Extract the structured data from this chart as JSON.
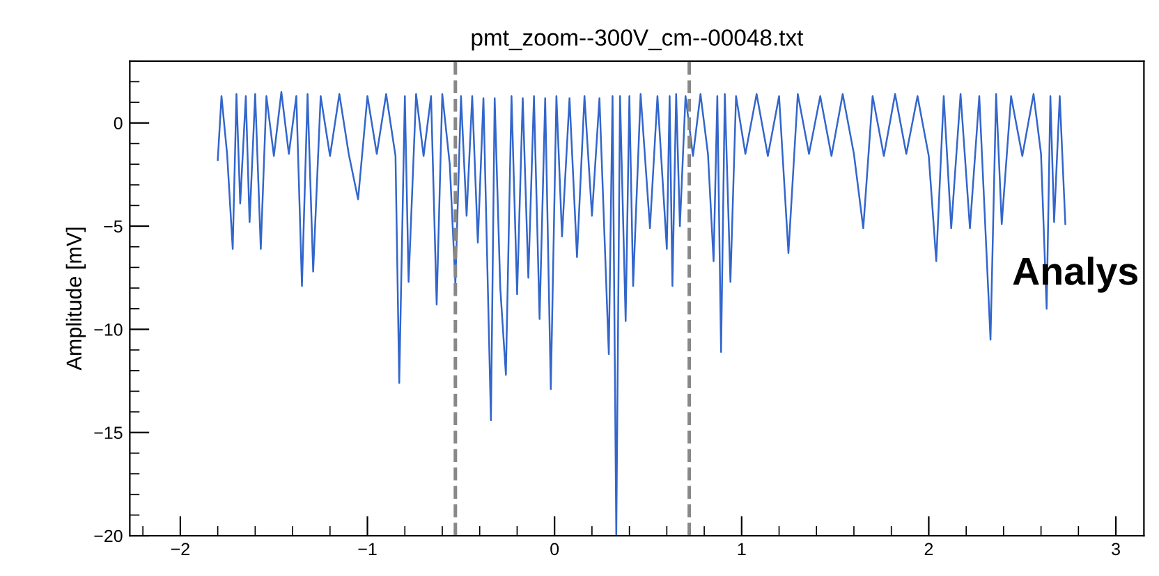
{
  "chart_data": {
    "type": "line",
    "title": "pmt_zoom--300V_cm--00048.txt",
    "ylabel": "Amplitude [mV]",
    "annotations": [
      "Analys"
    ],
    "xlim": [
      -2.27,
      3.15
    ],
    "ylim": [
      -20,
      3
    ],
    "xticks": [
      {
        "value": -2,
        "label": "−2"
      },
      {
        "value": -1,
        "label": "−1"
      },
      0,
      1,
      2,
      3
    ],
    "yticks": [
      {
        "value": -20,
        "label": "−20"
      },
      {
        "value": -15,
        "label": "−15"
      },
      {
        "value": -10,
        "label": "−10"
      },
      {
        "value": -5,
        "label": "−5"
      },
      0
    ],
    "grid": false,
    "legend": false,
    "marker": "none",
    "line_style": "solid",
    "ref_lines": [
      {
        "axis": "x",
        "value": -0.53,
        "color": "#888888",
        "line_style": "dashed"
      },
      {
        "axis": "x",
        "value": 0.72,
        "color": "#888888",
        "line_style": "dashed"
      }
    ],
    "series": [
      {
        "color": "#3366cc",
        "x": [
          -1.8,
          -1.78,
          -1.75,
          -1.72,
          -1.7,
          -1.68,
          -1.65,
          -1.63,
          -1.6,
          -1.57,
          -1.54,
          -1.5,
          -1.46,
          -1.42,
          -1.38,
          -1.35,
          -1.32,
          -1.29,
          -1.25,
          -1.2,
          -1.15,
          -1.1,
          -1.05,
          -1.0,
          -0.95,
          -0.9,
          -0.85,
          -0.83,
          -0.8,
          -0.78,
          -0.74,
          -0.7,
          -0.66,
          -0.63,
          -0.6,
          -0.56,
          -0.53,
          -0.5,
          -0.47,
          -0.44,
          -0.41,
          -0.38,
          -0.34,
          -0.32,
          -0.29,
          -0.26,
          -0.23,
          -0.2,
          -0.17,
          -0.14,
          -0.11,
          -0.08,
          -0.05,
          -0.02,
          0.01,
          0.04,
          0.08,
          0.12,
          0.16,
          0.2,
          0.24,
          0.29,
          0.31,
          0.33,
          0.35,
          0.38,
          0.4,
          0.42,
          0.46,
          0.51,
          0.55,
          0.6,
          0.615,
          0.63,
          0.65,
          0.67,
          0.7,
          0.74,
          0.78,
          0.82,
          0.85,
          0.87,
          0.89,
          0.91,
          0.94,
          0.97,
          1.02,
          1.08,
          1.14,
          1.2,
          1.25,
          1.3,
          1.36,
          1.42,
          1.48,
          1.54,
          1.6,
          1.65,
          1.7,
          1.76,
          1.82,
          1.88,
          1.94,
          2.0,
          2.04,
          2.08,
          2.12,
          2.17,
          2.22,
          2.27,
          2.33,
          2.36,
          2.39,
          2.44,
          2.5,
          2.56,
          2.6,
          2.63,
          2.65,
          2.67,
          2.7,
          2.73
        ],
        "values": [
          -1.8,
          1.3,
          -1.5,
          -6.1,
          1.4,
          -3.9,
          1.3,
          -4.8,
          1.4,
          -6.1,
          1.3,
          -1.6,
          1.5,
          -1.5,
          1.3,
          -7.9,
          1.4,
          -7.2,
          1.3,
          -1.6,
          1.4,
          -1.5,
          -3.7,
          1.3,
          -1.5,
          1.4,
          -1.6,
          -12.6,
          1.3,
          -7.7,
          1.4,
          -1.6,
          1.3,
          -8.8,
          1.4,
          -2.0,
          -7.8,
          1.3,
          -4.5,
          1.3,
          -5.8,
          1.2,
          -14.4,
          1.2,
          -8.0,
          -12.2,
          1.3,
          -8.3,
          1.2,
          -7.5,
          1.3,
          -9.5,
          1.2,
          -12.9,
          1.3,
          -5.5,
          1.2,
          -6.5,
          1.3,
          -4.5,
          1.2,
          -11.2,
          1.3,
          -20,
          1.3,
          -9.6,
          1.3,
          -7.9,
          1.4,
          -5.1,
          1.3,
          -6.1,
          1.3,
          -7.9,
          1.4,
          -5.0,
          1.3,
          -1.6,
          1.4,
          -1.5,
          -6.7,
          1.3,
          -11.1,
          1.4,
          -7.7,
          1.3,
          -1.5,
          1.4,
          -1.6,
          1.3,
          -6.3,
          1.4,
          -1.5,
          1.3,
          -1.6,
          1.4,
          -1.5,
          -5.1,
          1.3,
          -1.6,
          1.4,
          -1.5,
          1.3,
          -1.6,
          -6.7,
          1.3,
          -5.1,
          1.4,
          -5.1,
          1.3,
          -10.5,
          1.4,
          -4.9,
          1.3,
          -1.6,
          1.4,
          -1.5,
          -9.0,
          1.3,
          -4.8,
          1.3,
          -4.9
        ]
      }
    ]
  }
}
